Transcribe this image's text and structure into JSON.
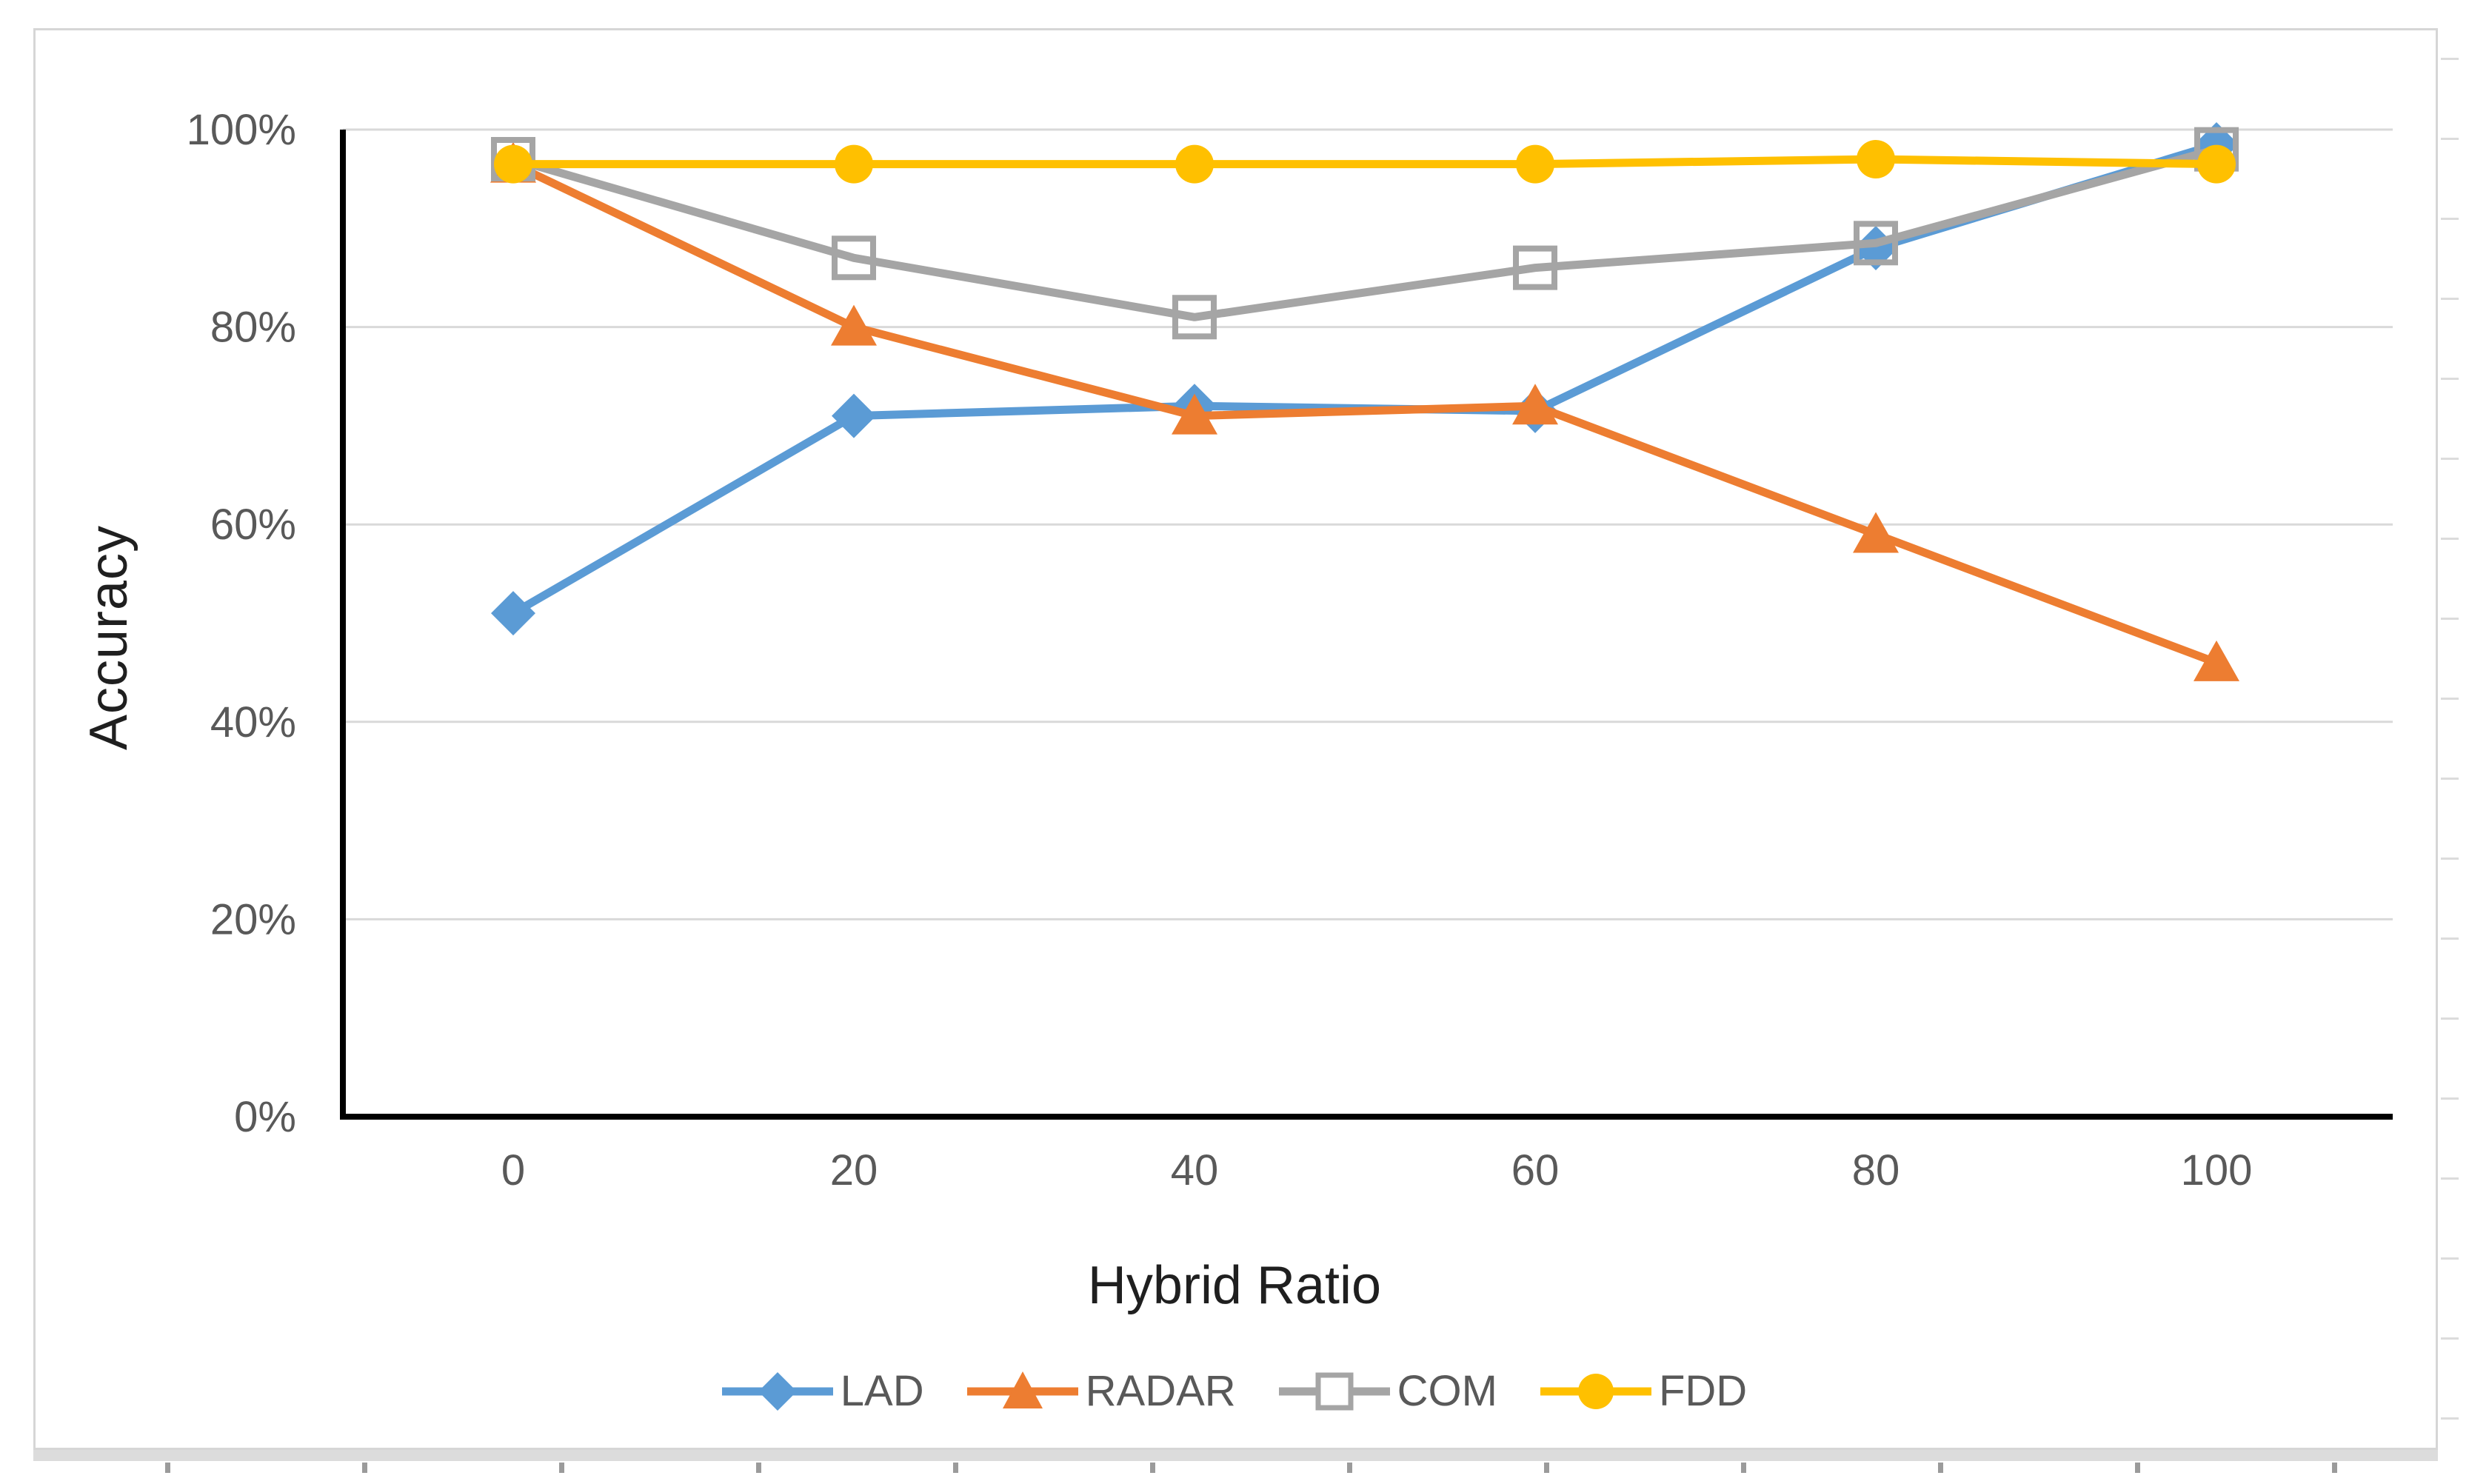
{
  "figure": {
    "background": "#ffffff",
    "border_color": "#d6d6d6"
  },
  "chart_data": {
    "type": "line",
    "title": "",
    "xlabel": "Hybrid Ratio",
    "ylabel": "Accuracy",
    "x": [
      0,
      20,
      40,
      60,
      80,
      100
    ],
    "x_tick_labels": [
      "0",
      "20",
      "40",
      "60",
      "80",
      "100"
    ],
    "y_ticks": [
      0,
      20,
      40,
      60,
      80,
      100
    ],
    "y_tick_labels": [
      "0%",
      "20%",
      "40%",
      "60%",
      "80%",
      "100%"
    ],
    "ylim": [
      0,
      100
    ],
    "grid": "horizontal",
    "gridline_color": "#d9d9d9",
    "axis_line_color": "#000000",
    "tick_label_color": "#595959",
    "axis_title_color": "#1f1f1f",
    "legend_position": "bottom",
    "series": [
      {
        "name": "LAD",
        "color": "#5B9BD5",
        "marker": "diamond",
        "values": [
          51,
          71,
          72,
          71.5,
          88,
          98.5
        ]
      },
      {
        "name": "RADAR",
        "color": "#ED7D31",
        "marker": "triangle",
        "values": [
          96.5,
          80,
          71,
          72,
          59,
          46
        ]
      },
      {
        "name": "COM",
        "color": "#A5A5A5",
        "marker": "square-open",
        "values": [
          97,
          87,
          81,
          86,
          88.5,
          98
        ]
      },
      {
        "name": "FDD",
        "color": "#FFC000",
        "marker": "circle",
        "values": [
          96.5,
          96.5,
          96.5,
          96.5,
          97,
          96.5
        ]
      }
    ]
  }
}
